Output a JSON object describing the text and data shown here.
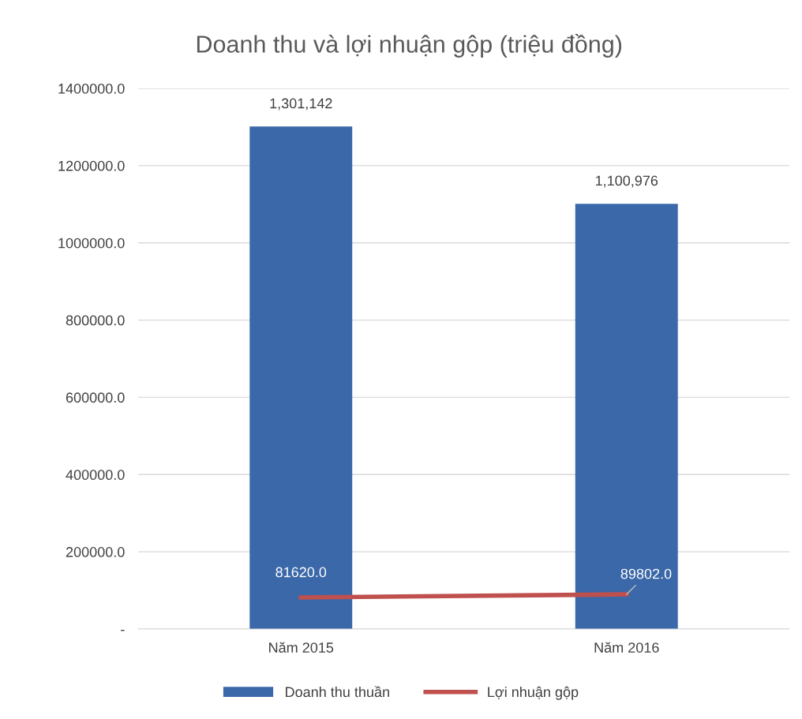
{
  "chart_data": {
    "type": "bar",
    "title": "Doanh thu và lợi nhuận gộp (triệu đồng)",
    "categories": [
      "Năm 2015",
      "Năm 2016"
    ],
    "series": [
      {
        "name": "Doanh thu thuần",
        "color": "#3b68a8",
        "values": [
          1301142,
          1100976
        ],
        "value_labels": [
          "1,301,142",
          "1,100,976"
        ]
      },
      {
        "name": "Lợi nhuận gộp",
        "type": "line",
        "color": "#c0504d",
        "values": [
          81620.0,
          89802.0
        ],
        "value_labels": [
          "81620.0",
          "89802.0"
        ]
      }
    ],
    "ylim": [
      0,
      1400000
    ],
    "yticks": [
      {
        "value": 0,
        "label": "-"
      },
      {
        "value": 200000,
        "label": "200000.0"
      },
      {
        "value": 400000,
        "label": "400000.0"
      },
      {
        "value": 600000,
        "label": "600000.0"
      },
      {
        "value": 800000,
        "label": "800000.0"
      },
      {
        "value": 1000000,
        "label": "1000000.0"
      },
      {
        "value": 1200000,
        "label": "1200000.0"
      },
      {
        "value": 1400000,
        "label": "1400000.0"
      }
    ],
    "grid": "y",
    "legend": "bottom",
    "marker": "none",
    "line_style": "solid"
  }
}
